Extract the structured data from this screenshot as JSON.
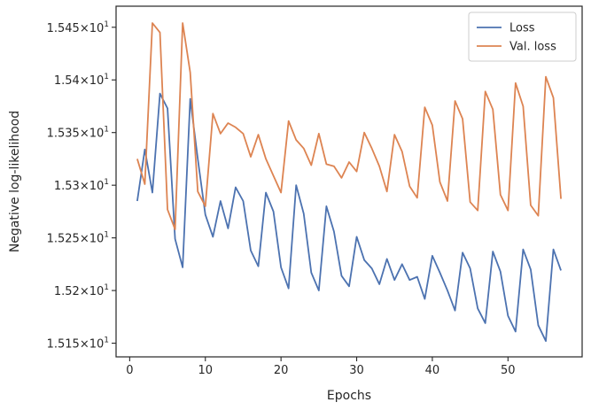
{
  "chart_data": {
    "type": "line",
    "xlabel": "Epochs",
    "ylabel": "Negative log-likelihood",
    "xlim": [
      -1.8,
      59.8
    ],
    "ylim": [
      15.137,
      15.47
    ],
    "xticks": [
      0,
      10,
      20,
      30,
      40,
      50
    ],
    "yticks": [
      {
        "value": 15.15,
        "label": "1.515"
      },
      {
        "value": 15.2,
        "label": "1.52"
      },
      {
        "value": 15.25,
        "label": "1.525"
      },
      {
        "value": 15.3,
        "label": "1.53"
      },
      {
        "value": 15.35,
        "label": "1.535"
      },
      {
        "value": 15.4,
        "label": "1.54"
      },
      {
        "value": 15.45,
        "label": "1.545"
      }
    ],
    "ytick_suffix": "×10",
    "ytick_exponent": "1",
    "grid": false,
    "legend_position": "top-right",
    "x": [
      1,
      2,
      3,
      4,
      5,
      6,
      7,
      8,
      9,
      10,
      11,
      12,
      13,
      14,
      15,
      16,
      17,
      18,
      19,
      20,
      21,
      22,
      23,
      24,
      25,
      26,
      27,
      28,
      29,
      30,
      31,
      32,
      33,
      34,
      35,
      36,
      37,
      38,
      39,
      40,
      41,
      42,
      43,
      44,
      45,
      46,
      47,
      48,
      49,
      50,
      51,
      52,
      53,
      54,
      55,
      56,
      57
    ],
    "series": [
      {
        "name": "Loss",
        "color": "#4c72b0",
        "values": [
          15.285,
          15.334,
          15.293,
          15.387,
          15.373,
          15.249,
          15.222,
          15.382,
          15.325,
          15.272,
          15.251,
          15.285,
          15.259,
          15.298,
          15.285,
          15.238,
          15.223,
          15.293,
          15.275,
          15.222,
          15.202,
          15.3,
          15.273,
          15.217,
          15.2,
          15.28,
          15.256,
          15.214,
          15.204,
          15.251,
          15.229,
          15.221,
          15.206,
          15.23,
          15.21,
          15.225,
          15.21,
          15.213,
          15.192,
          15.233,
          15.217,
          15.2,
          15.181,
          15.236,
          15.221,
          15.183,
          15.169,
          15.237,
          15.218,
          15.176,
          15.161,
          15.239,
          15.22,
          15.167,
          15.152,
          15.239,
          15.219
        ]
      },
      {
        "name": "Val. loss",
        "color": "#dd8452",
        "values": [
          15.325,
          15.301,
          15.454,
          15.445,
          15.277,
          15.258,
          15.454,
          15.407,
          15.294,
          15.28,
          15.368,
          15.349,
          15.359,
          15.355,
          15.349,
          15.327,
          15.348,
          15.325,
          15.309,
          15.293,
          15.361,
          15.343,
          15.335,
          15.319,
          15.349,
          15.32,
          15.318,
          15.307,
          15.322,
          15.313,
          15.35,
          15.335,
          15.318,
          15.294,
          15.348,
          15.332,
          15.299,
          15.288,
          15.374,
          15.357,
          15.303,
          15.285,
          15.38,
          15.363,
          15.284,
          15.276,
          15.389,
          15.372,
          15.291,
          15.276,
          15.397,
          15.375,
          15.281,
          15.271,
          15.403,
          15.383,
          15.287
        ]
      }
    ]
  }
}
